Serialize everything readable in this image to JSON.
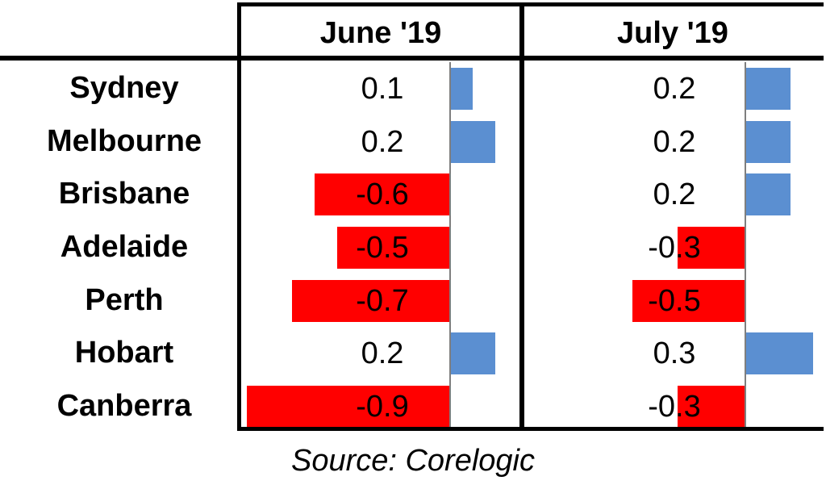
{
  "chart_data": {
    "type": "table",
    "columns": [
      "June '19",
      "July '19"
    ],
    "rows": [
      {
        "city": "Sydney",
        "values": [
          0.1,
          0.2
        ],
        "labels": [
          "0.1",
          "0.2"
        ]
      },
      {
        "city": "Melbourne",
        "values": [
          0.2,
          0.2
        ],
        "labels": [
          "0.2",
          "0.2"
        ]
      },
      {
        "city": "Brisbane",
        "values": [
          -0.6,
          0.2
        ],
        "labels": [
          "-0.6",
          "0.2"
        ]
      },
      {
        "city": "Adelaide",
        "values": [
          -0.5,
          -0.3
        ],
        "labels": [
          "-0.5",
          "-0.3"
        ]
      },
      {
        "city": "Perth",
        "values": [
          -0.7,
          -0.5
        ],
        "labels": [
          "-0.7",
          "-0.5"
        ]
      },
      {
        "city": "Hobart",
        "values": [
          0.2,
          0.3
        ],
        "labels": [
          "0.2",
          "0.3"
        ]
      },
      {
        "city": "Canberra",
        "values": [
          -0.9,
          -0.3
        ],
        "labels": [
          "-0.9",
          "-0.3"
        ]
      }
    ],
    "colors": {
      "positive": "#5b8fd1",
      "negative": "#ff0000"
    }
  },
  "source": "Source: Corelogic"
}
